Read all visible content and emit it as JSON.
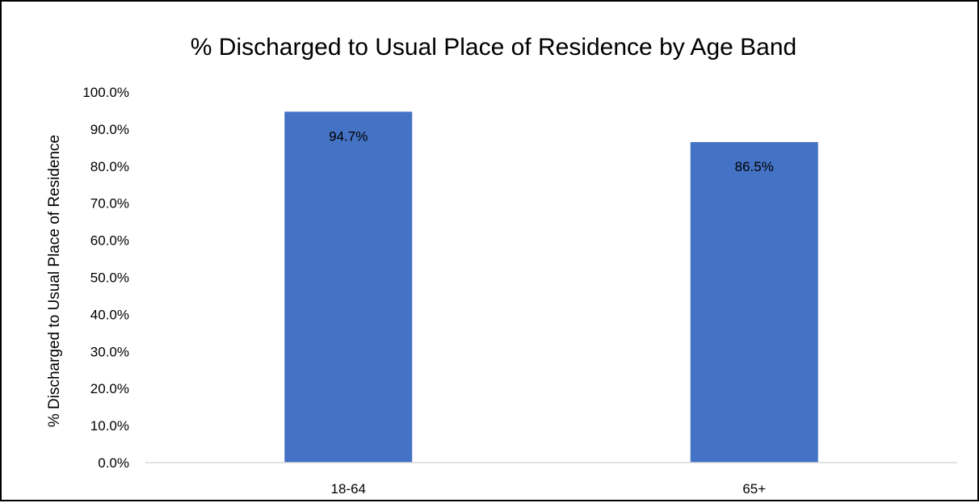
{
  "chart_data": {
    "type": "bar",
    "title": "% Discharged to Usual Place of Residence by Age Band",
    "xlabel": "",
    "ylabel": "% Discharged to Usual Place of Residence",
    "categories": [
      "18-64",
      "65+"
    ],
    "values": [
      94.7,
      86.5
    ],
    "data_labels": [
      "94.7%",
      "86.5%"
    ],
    "ylim": [
      0,
      100
    ],
    "yticks": [
      0,
      10,
      20,
      30,
      40,
      50,
      60,
      70,
      80,
      90,
      100
    ],
    "ytick_labels": [
      "0.0%",
      "10.0%",
      "20.0%",
      "30.0%",
      "40.0%",
      "50.0%",
      "60.0%",
      "70.0%",
      "80.0%",
      "90.0%",
      "100.0%"
    ],
    "grid": false,
    "legend": "none",
    "bar_color": "#4472C4",
    "axis_color": "#D9D9D9"
  }
}
